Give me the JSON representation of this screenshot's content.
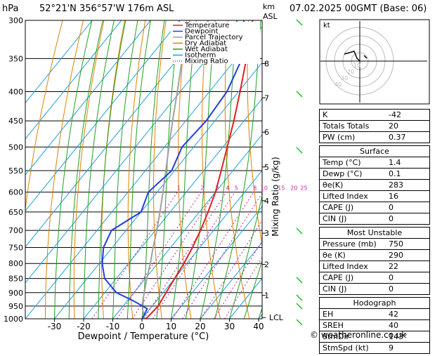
{
  "header": {
    "hpa_label": "hPa",
    "location": "52°21'N  356°57'W  176m  ASL",
    "km_label": "km",
    "asl_label": "ASL",
    "datetime": "07.02.2025  00GMT  (Base: 06)"
  },
  "chart_data": {
    "type": "skew-t",
    "xlabel": "Dewpoint / Temperature (°C)",
    "ylabel_right": "Mixing Ratio (g/kg)",
    "pressure_levels": [
      300,
      350,
      400,
      450,
      500,
      550,
      600,
      650,
      700,
      750,
      800,
      850,
      900,
      950,
      1000
    ],
    "x_ticks": [
      -30,
      -20,
      -10,
      0,
      10,
      20,
      30,
      40
    ],
    "km_ticks": [
      {
        "km": "8",
        "p": 357
      },
      {
        "km": "7",
        "p": 410
      },
      {
        "km": "6",
        "p": 471
      },
      {
        "km": "5",
        "p": 542
      },
      {
        "km": "4",
        "p": 621
      },
      {
        "km": "3",
        "p": 708
      },
      {
        "km": "2",
        "p": 803
      },
      {
        "km": "1",
        "p": 910
      },
      {
        "km": "LCL",
        "p": 995
      }
    ],
    "mixing_ratio_labels": [
      "1",
      "2",
      "3",
      "4",
      "5",
      "8",
      "10",
      "15",
      "20",
      "25"
    ],
    "mixing_ratio_values": [
      1,
      2,
      3,
      4,
      5,
      8,
      10,
      15,
      20,
      25
    ],
    "legend": [
      {
        "name": "Temperature",
        "color": "#e02020",
        "style": "solid"
      },
      {
        "name": "Dewpoint",
        "color": "#2040e0",
        "style": "solid"
      },
      {
        "name": "Parcel Trajectory",
        "color": "#a0a0a0",
        "style": "solid"
      },
      {
        "name": "Dry Adiabat",
        "color": "#e08000",
        "style": "solid"
      },
      {
        "name": "Wet Adiabat",
        "color": "#20a020",
        "style": "solid"
      },
      {
        "name": "Isotherm",
        "color": "#20a0e0",
        "style": "solid"
      },
      {
        "name": "Mixing Ratio",
        "color": "#c020a0",
        "style": "dotted"
      }
    ],
    "temperature": [
      {
        "p": 1000,
        "t": 1.4
      },
      {
        "p": 950,
        "t": 2.0
      },
      {
        "p": 900,
        "t": 1.0
      },
      {
        "p": 850,
        "t": 0.0
      },
      {
        "p": 800,
        "t": -1.0
      },
      {
        "p": 750,
        "t": -2.5
      },
      {
        "p": 700,
        "t": -4.5
      },
      {
        "p": 650,
        "t": -7.0
      },
      {
        "p": 600,
        "t": -10.0
      },
      {
        "p": 550,
        "t": -14.0
      },
      {
        "p": 500,
        "t": -18.5
      },
      {
        "p": 450,
        "t": -23.5
      },
      {
        "p": 400,
        "t": -29.5
      },
      {
        "p": 350,
        "t": -36.5
      },
      {
        "p": 300,
        "t": -45.0
      }
    ],
    "dewpoint": [
      {
        "p": 1000,
        "t": 0.1
      },
      {
        "p": 960,
        "t": -1.0
      },
      {
        "p": 930,
        "t": -8.0
      },
      {
        "p": 900,
        "t": -16.0
      },
      {
        "p": 850,
        "t": -24.0
      },
      {
        "p": 800,
        "t": -29.0
      },
      {
        "p": 750,
        "t": -33.0
      },
      {
        "p": 700,
        "t": -35.0
      },
      {
        "p": 650,
        "t": -30.0
      },
      {
        "p": 600,
        "t": -33.0
      },
      {
        "p": 550,
        "t": -31.0
      },
      {
        "p": 500,
        "t": -34.0
      },
      {
        "p": 450,
        "t": -33.0
      },
      {
        "p": 400,
        "t": -34.0
      },
      {
        "p": 350,
        "t": -38.0
      },
      {
        "p": 300,
        "t": -48.0
      }
    ],
    "parcel": [
      {
        "p": 1000,
        "t": 1.4
      },
      {
        "p": 995,
        "t": 0.5
      },
      {
        "p": 950,
        "t": -3.5
      },
      {
        "p": 900,
        "t": -6.5
      },
      {
        "p": 850,
        "t": -9.5
      },
      {
        "p": 800,
        "t": -12.5
      },
      {
        "p": 750,
        "t": -16.0
      },
      {
        "p": 700,
        "t": -19.5
      },
      {
        "p": 650,
        "t": -23.5
      },
      {
        "p": 600,
        "t": -28.0
      },
      {
        "p": 550,
        "t": -33.0
      },
      {
        "p": 500,
        "t": -38.5
      },
      {
        "p": 450,
        "t": -44.5
      },
      {
        "p": 400,
        "t": -51.0
      },
      {
        "p": 350,
        "t": -58.5
      },
      {
        "p": 300,
        "t": -66.5
      }
    ]
  },
  "hodograph": {
    "label": "kt",
    "rings": [
      "10",
      "20",
      "30",
      "40"
    ]
  },
  "indices": [
    {
      "label": "K",
      "value": "-42"
    },
    {
      "label": "Totals Totals",
      "value": "20"
    },
    {
      "label": "PW (cm)",
      "value": "0.37"
    }
  ],
  "surface": {
    "title": "Surface",
    "rows": [
      {
        "label": "Temp (°C)",
        "value": "1.4"
      },
      {
        "label": "Dewp (°C)",
        "value": "0.1"
      },
      {
        "label": "θe(K)",
        "value": "283"
      },
      {
        "label": "Lifted Index",
        "value": "16"
      },
      {
        "label": "CAPE (J)",
        "value": "0"
      },
      {
        "label": "CIN (J)",
        "value": "0"
      }
    ]
  },
  "most_unstable": {
    "title": "Most Unstable",
    "rows": [
      {
        "label": "Pressure (mb)",
        "value": "750"
      },
      {
        "label": "θe (K)",
        "value": "290"
      },
      {
        "label": "Lifted Index",
        "value": "22"
      },
      {
        "label": "CAPE (J)",
        "value": "0"
      },
      {
        "label": "CIN (J)",
        "value": "0"
      }
    ]
  },
  "hodograph_box": {
    "title": "Hodograph",
    "rows": [
      {
        "label": "EH",
        "value": "42"
      },
      {
        "label": "SREH",
        "value": "40"
      },
      {
        "label": "StmDir",
        "value": "143°"
      },
      {
        "label": "StmSpd (kt)",
        "value": "9"
      }
    ]
  },
  "credit": "© weatheronline.co.uk"
}
